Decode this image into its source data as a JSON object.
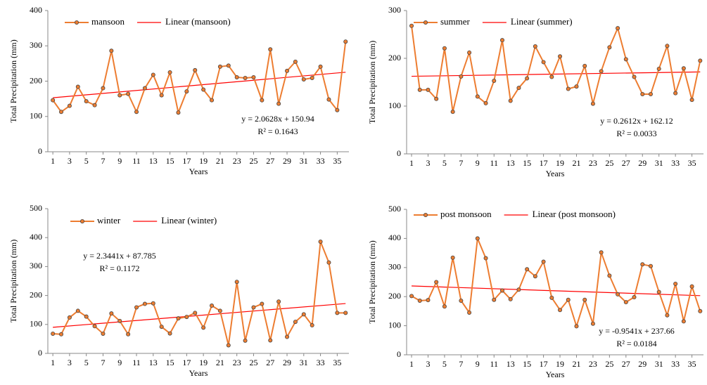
{
  "chart_data": [
    {
      "type": "line",
      "xlabel": "Years",
      "ylabel": "Total Precipitation  (mm)",
      "x": [
        1,
        2,
        3,
        4,
        5,
        6,
        7,
        8,
        9,
        10,
        11,
        12,
        13,
        14,
        15,
        16,
        17,
        18,
        19,
        20,
        21,
        22,
        23,
        24,
        25,
        26,
        27,
        28,
        29,
        30,
        31,
        32,
        33,
        34,
        35,
        36
      ],
      "series": [
        {
          "name": "mansoon",
          "color": "#ed7d31",
          "values": [
            146,
            113,
            130,
            184,
            143,
            132,
            180,
            286,
            160,
            164,
            113,
            180,
            218,
            160,
            225,
            111,
            171,
            231,
            176,
            146,
            241,
            244,
            211,
            209,
            211,
            146,
            290,
            136,
            229,
            255,
            205,
            209,
            241,
            148,
            118,
            312
          ]
        }
      ],
      "trend": {
        "name": "Linear  (mansoon)",
        "color": "#ff0000",
        "slope": 2.0628,
        "intercept": 150.94
      },
      "annotations": [
        "y = 2.0628x  + 150.94",
        "R² = 0.1643"
      ],
      "xlim": [
        0.4,
        36.4
      ],
      "ylim": [
        0,
        400
      ],
      "xticks": [
        1,
        3,
        5,
        7,
        9,
        11,
        13,
        15,
        17,
        19,
        21,
        23,
        25,
        27,
        29,
        31,
        33,
        35
      ],
      "yticks": [
        0,
        100,
        200,
        300,
        400
      ]
    },
    {
      "type": "line",
      "xlabel": "Years",
      "ylabel": "Total Precipitation  (mm)",
      "x": [
        1,
        2,
        3,
        4,
        5,
        6,
        7,
        8,
        9,
        10,
        11,
        12,
        13,
        14,
        15,
        16,
        17,
        18,
        19,
        20,
        21,
        22,
        23,
        24,
        25,
        26,
        27,
        28,
        29,
        30,
        31,
        32,
        33,
        34,
        35,
        36
      ],
      "series": [
        {
          "name": "summer",
          "color": "#ed7d31",
          "values": [
            268,
            134,
            134,
            115,
            221,
            88,
            162,
            212,
            120,
            106,
            153,
            238,
            111,
            138,
            158,
            225,
            192,
            161,
            204,
            136,
            141,
            184,
            105,
            173,
            223,
            263,
            198,
            161,
            125,
            125,
            178,
            226,
            127,
            179,
            113,
            195
          ]
        }
      ],
      "trend": {
        "name": "Linear  (summer)",
        "color": "#ff0000",
        "slope": 0.2612,
        "intercept": 162.12
      },
      "annotations": [
        "y = 0.2612x  + 162.12",
        "R² = 0.0033"
      ],
      "xlim": [
        0.4,
        36.4
      ],
      "ylim": [
        0,
        300
      ],
      "xticks": [
        1,
        3,
        5,
        7,
        9,
        11,
        13,
        15,
        17,
        19,
        21,
        23,
        25,
        27,
        29,
        31,
        33,
        35
      ],
      "yticks": [
        0,
        100,
        200,
        300
      ]
    },
    {
      "type": "line",
      "xlabel": "Years",
      "ylabel": "Total Precipitation  (mm)",
      "x": [
        1,
        2,
        3,
        4,
        5,
        6,
        7,
        8,
        9,
        10,
        11,
        12,
        13,
        14,
        15,
        16,
        17,
        18,
        19,
        20,
        21,
        22,
        23,
        24,
        25,
        26,
        27,
        28,
        29,
        30,
        31,
        32,
        33,
        34,
        35,
        36
      ],
      "series": [
        {
          "name": "winter",
          "color": "#ed7d31",
          "values": [
            68,
            66,
            124,
            147,
            127,
            94,
            68,
            138,
            112,
            66,
            159,
            171,
            173,
            92,
            69,
            121,
            126,
            140,
            89,
            165,
            147,
            28,
            247,
            44,
            159,
            171,
            45,
            179,
            57,
            109,
            135,
            97,
            386,
            314,
            140,
            140
          ]
        }
      ],
      "trend": {
        "name": "Linear (winter)",
        "color": "#ff0000",
        "slope": 2.3441,
        "intercept": 87.785
      },
      "annotations": [
        "y = 2.3441x  + 87.785",
        "R² = 0.1172"
      ],
      "xlim": [
        0.4,
        36.4
      ],
      "ylim": [
        0,
        500
      ],
      "xticks": [
        1,
        3,
        5,
        7,
        9,
        11,
        13,
        15,
        17,
        19,
        21,
        23,
        25,
        27,
        29,
        31,
        33,
        35
      ],
      "yticks": [
        0,
        100,
        200,
        300,
        400,
        500
      ]
    },
    {
      "type": "line",
      "xlabel": "Years",
      "ylabel": "Total Precipitation  (mm)",
      "x": [
        1,
        2,
        3,
        4,
        5,
        6,
        7,
        8,
        9,
        10,
        11,
        12,
        13,
        14,
        15,
        16,
        17,
        18,
        19,
        20,
        21,
        22,
        23,
        24,
        25,
        26,
        27,
        28,
        29,
        30,
        31,
        32,
        33,
        34,
        35,
        36
      ],
      "series": [
        {
          "name": "post monsoon",
          "color": "#ed7d31",
          "values": [
            202,
            186,
            188,
            250,
            166,
            334,
            186,
            145,
            400,
            332,
            189,
            221,
            191,
            224,
            294,
            270,
            320,
            196,
            154,
            189,
            98,
            189,
            107,
            352,
            272,
            208,
            181,
            198,
            311,
            305,
            216,
            136,
            244,
            115,
            235,
            150
          ]
        }
      ],
      "trend": {
        "name": "Linear (post monsoon)",
        "color": "#ff0000",
        "slope": -0.9541,
        "intercept": 237.66
      },
      "annotations": [
        "y = -0.9541x  + 237.66",
        "R² = 0.0184"
      ],
      "xlim": [
        0.4,
        36.4
      ],
      "ylim": [
        0,
        500
      ],
      "xticks": [
        1,
        3,
        5,
        7,
        9,
        11,
        13,
        15,
        17,
        19,
        21,
        23,
        25,
        27,
        29,
        31,
        33,
        35
      ],
      "yticks": [
        0,
        100,
        200,
        300,
        400,
        500
      ]
    }
  ]
}
